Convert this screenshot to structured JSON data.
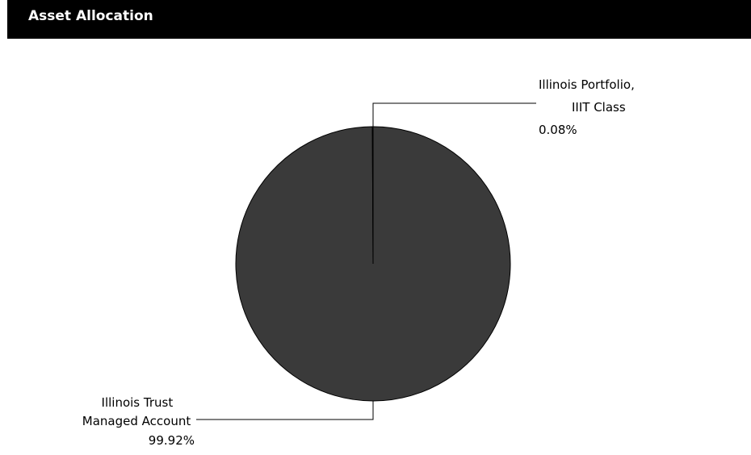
{
  "header": {
    "title": "Asset Allocation"
  },
  "colors": {
    "header_bg": "#000000",
    "header_text": "#ffffff",
    "slice_main": "#3a3a3a",
    "slice_small": "#3a3a3a",
    "slice_stroke": "#000000",
    "leader": "#000000"
  },
  "chart_data": {
    "type": "pie",
    "title": "Asset Allocation",
    "slices": [
      {
        "name_lines": [
          "Illinois Trust",
          "Managed Account"
        ],
        "value": 99.92,
        "value_label": "99.92%"
      },
      {
        "name_lines": [
          "Illinois Portfolio,",
          "IIIT Class"
        ],
        "value": 0.08,
        "value_label": "0.08%"
      }
    ],
    "legend": "none"
  }
}
